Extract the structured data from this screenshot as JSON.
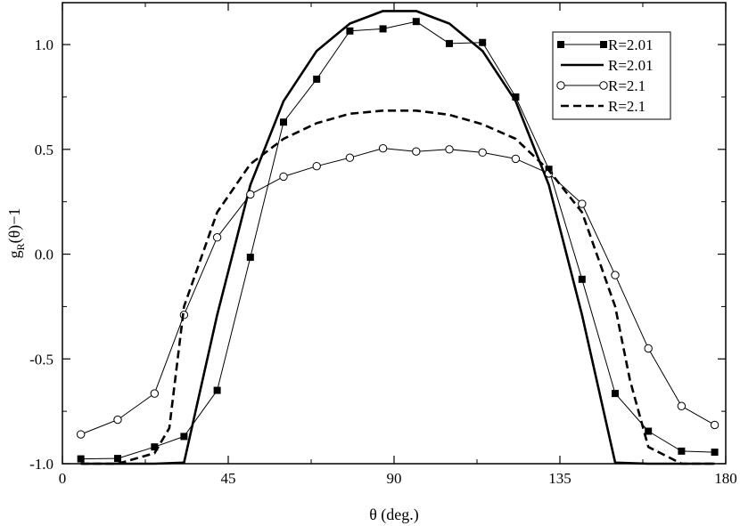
{
  "chart_data": {
    "type": "line",
    "xlabel": "θ (deg.)",
    "ylabel_main": "g",
    "ylabel_sub": "R",
    "ylabel_rest": "(θ)−1",
    "xlim": [
      0,
      180
    ],
    "ylim": [
      -1.0,
      1.2
    ],
    "x_ticks": [
      0,
      45,
      90,
      135,
      180
    ],
    "x_tick_labels": [
      "0",
      "45",
      "90",
      "135",
      "180"
    ],
    "y_ticks": [
      -1.0,
      -0.5,
      0.0,
      0.5,
      1.0
    ],
    "y_tick_labels": [
      "-1.0",
      "-0.5",
      "0.0",
      "0.5",
      "1.0"
    ],
    "grid": false,
    "legend_position": "top-right",
    "series": [
      {
        "name": "R=2.01",
        "style": "solid-thin",
        "marker": "filled-square",
        "x": [
          5,
          15,
          25,
          33,
          42,
          51,
          60,
          69,
          78,
          87,
          96,
          105,
          114,
          123,
          132,
          141,
          150,
          159,
          168,
          177
        ],
        "y": [
          -0.977,
          -0.975,
          -0.92,
          -0.87,
          -0.65,
          -0.015,
          0.63,
          0.835,
          1.065,
          1.075,
          1.11,
          1.005,
          1.01,
          0.75,
          0.405,
          -0.12,
          -0.665,
          -0.845,
          -0.94,
          -0.945
        ]
      },
      {
        "name": "R=2.01",
        "style": "solid-thick",
        "marker": "none",
        "x": [
          5,
          15,
          25,
          33,
          42,
          51,
          60,
          69,
          78,
          87,
          96,
          105,
          114,
          123,
          132,
          141,
          150,
          159,
          168,
          177
        ],
        "y": [
          -1.0,
          -1.0,
          -1.0,
          -0.995,
          -0.29,
          0.33,
          0.73,
          0.97,
          1.1,
          1.16,
          1.16,
          1.1,
          0.97,
          0.73,
          0.33,
          -0.29,
          -0.995,
          -1.0,
          -1.0,
          -1.0
        ]
      },
      {
        "name": "R=2.1",
        "style": "solid-thin",
        "marker": "open-circle",
        "x": [
          5,
          15,
          25,
          33,
          42,
          51,
          60,
          69,
          78,
          87,
          96,
          105,
          114,
          123,
          132,
          141,
          150,
          159,
          168,
          177
        ],
        "y": [
          -0.86,
          -0.79,
          -0.665,
          -0.29,
          0.08,
          0.285,
          0.37,
          0.42,
          0.46,
          0.505,
          0.49,
          0.5,
          0.485,
          0.455,
          0.385,
          0.24,
          -0.1,
          -0.45,
          -0.725,
          -0.815
        ]
      },
      {
        "name": "R=2.1",
        "style": "dashed-thick",
        "marker": "none",
        "x": [
          5,
          15,
          25,
          29,
          33,
          42,
          51,
          60,
          69,
          78,
          87,
          96,
          105,
          114,
          123,
          132,
          141,
          150,
          154,
          159,
          168,
          177
        ],
        "y": [
          -1.0,
          -1.0,
          -0.95,
          -0.83,
          -0.25,
          0.2,
          0.43,
          0.55,
          0.625,
          0.67,
          0.685,
          0.685,
          0.665,
          0.62,
          0.55,
          0.4,
          0.2,
          -0.25,
          -0.6,
          -0.92,
          -1.0,
          -1.0
        ]
      }
    ]
  }
}
